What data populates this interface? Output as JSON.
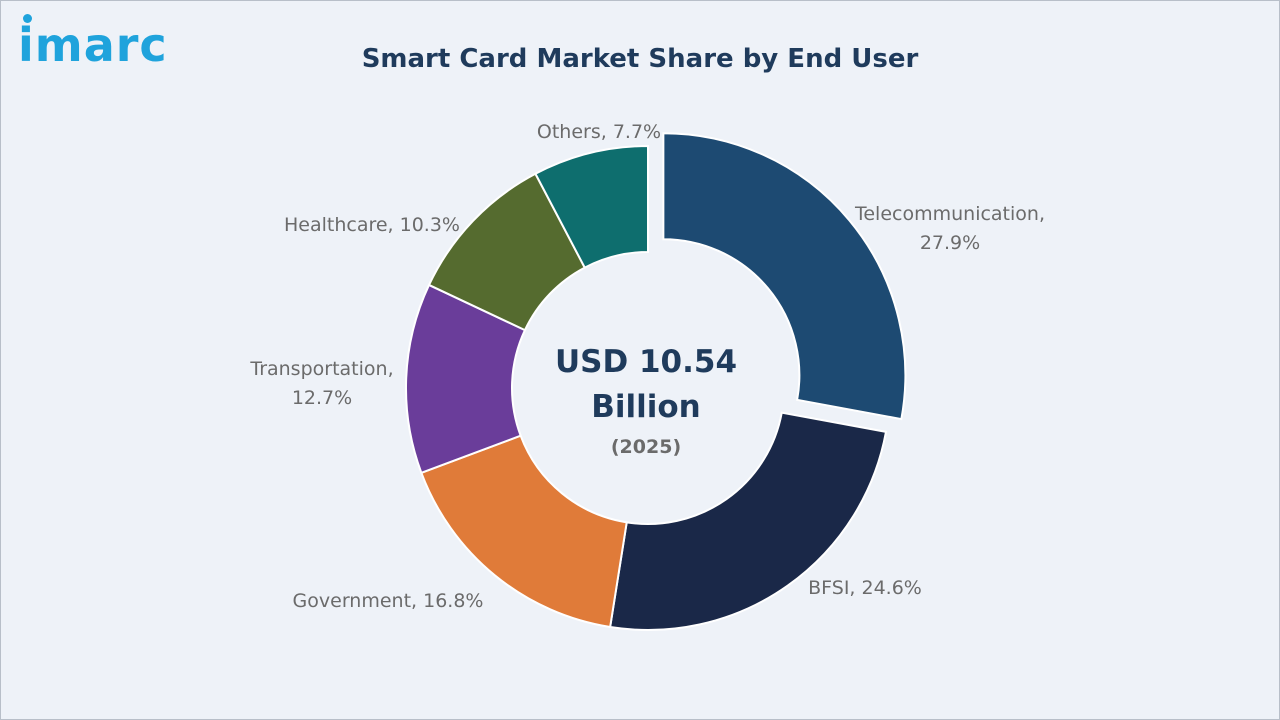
{
  "brand": {
    "logo_text": "imarc"
  },
  "chart_data": {
    "type": "pie",
    "title": "Smart Card Market Share by End User",
    "center": {
      "line1": "USD 10.54",
      "line2": "Billion",
      "line3": "(2025)"
    },
    "slices": [
      {
        "name": "Telecommunication",
        "value": 27.9,
        "label_lines": [
          "Telecommunication,",
          "27.9%"
        ],
        "color": "#1d4a72",
        "exploded": true
      },
      {
        "name": "BFSI",
        "value": 24.6,
        "label_lines": [
          "BFSI, 24.6%"
        ],
        "color": "#1a2848",
        "exploded": false
      },
      {
        "name": "Government",
        "value": 16.8,
        "label_lines": [
          "Government, 16.8%"
        ],
        "color": "#e07b39",
        "exploded": false
      },
      {
        "name": "Transportation",
        "value": 12.7,
        "label_lines": [
          "Transportation,",
          "12.7%"
        ],
        "color": "#6a3d9a",
        "exploded": false
      },
      {
        "name": "Healthcare",
        "value": 10.3,
        "label_lines": [
          "Healthcare, 10.3%"
        ],
        "color": "#556b2f",
        "exploded": false
      },
      {
        "name": "Others",
        "value": 7.7,
        "label_lines": [
          "Others, 7.7%"
        ],
        "color": "#0e6e6e",
        "exploded": false
      }
    ]
  }
}
